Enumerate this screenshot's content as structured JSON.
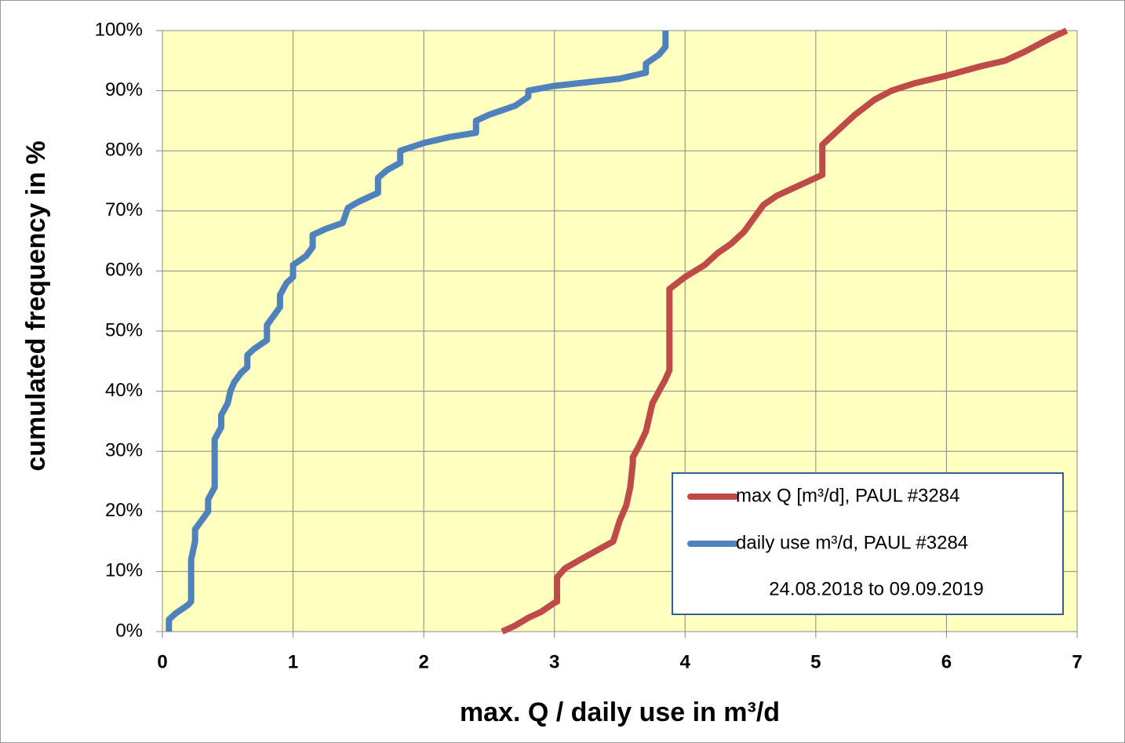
{
  "chart_data": {
    "type": "line",
    "x_label": "max. Q / daily use in m³/d",
    "y_label": "cumulated frequency in %",
    "annotation": "24.08.2018 to 09.09.2019",
    "xlim": [
      0,
      7
    ],
    "xticks": [
      0,
      1,
      2,
      3,
      4,
      5,
      6,
      7
    ],
    "ylim": [
      0,
      100
    ],
    "yticks": [
      {
        "value": 0,
        "label": "0%"
      },
      {
        "value": 10,
        "label": "10%"
      },
      {
        "value": 20,
        "label": "20%"
      },
      {
        "value": 30,
        "label": "30%"
      },
      {
        "value": 40,
        "label": "40%"
      },
      {
        "value": 50,
        "label": "50%"
      },
      {
        "value": 60,
        "label": "60%"
      },
      {
        "value": 70,
        "label": "70%"
      },
      {
        "value": 80,
        "label": "80%"
      },
      {
        "value": 90,
        "label": "90%"
      },
      {
        "value": 100,
        "label": "100%"
      }
    ],
    "grid": true,
    "legend": "lower right",
    "background": "#ffffc0",
    "series": [
      {
        "name": "max Q [m³/d],  PAUL #3284",
        "color": "#be4b48",
        "x": [
          2.6,
          2.7,
          2.8,
          2.9,
          3.0,
          3.02,
          3.02,
          3.08,
          3.2,
          3.35,
          3.45,
          3.5,
          3.55,
          3.58,
          3.6,
          3.6,
          3.65,
          3.7,
          3.75,
          3.8,
          3.85,
          3.88,
          3.88,
          4.0,
          4.15,
          4.25,
          4.35,
          4.45,
          4.5,
          4.6,
          4.7,
          4.85,
          5.05,
          5.05,
          5.15,
          5.3,
          5.45,
          5.58,
          5.75,
          6.0,
          6.25,
          6.45,
          6.6,
          6.8,
          6.92
        ],
        "values": [
          0,
          1,
          2.3,
          3.3,
          4.8,
          5,
          9,
          10.5,
          12,
          13.8,
          15,
          18.5,
          21,
          24,
          28,
          29,
          31,
          33.3,
          38,
          40,
          42,
          43.5,
          57,
          59,
          61,
          63,
          64.5,
          66.5,
          68,
          71,
          72.5,
          74,
          76,
          81,
          83,
          86,
          88.5,
          90,
          91.2,
          92.5,
          94,
          95,
          96.5,
          98.8,
          100
        ]
      },
      {
        "name": "daily use m³/d, PAUL #3284",
        "color": "#4f81bd",
        "x": [
          0.05,
          0.05,
          0.1,
          0.2,
          0.22,
          0.22,
          0.25,
          0.25,
          0.3,
          0.35,
          0.35,
          0.4,
          0.4,
          0.45,
          0.45,
          0.5,
          0.52,
          0.55,
          0.6,
          0.65,
          0.65,
          0.7,
          0.8,
          0.8,
          0.85,
          0.9,
          0.9,
          0.95,
          1.0,
          1.0,
          1.1,
          1.15,
          1.15,
          1.25,
          1.38,
          1.42,
          1.5,
          1.65,
          1.65,
          1.72,
          1.82,
          1.82,
          2.0,
          2.2,
          2.4,
          2.4,
          2.5,
          2.7,
          2.8,
          2.8,
          3.0,
          3.5,
          3.7,
          3.7,
          3.8,
          3.85,
          3.85
        ],
        "values": [
          0,
          2,
          3,
          4.5,
          5,
          12,
          15,
          17,
          18.5,
          20,
          22,
          24,
          32,
          34,
          36,
          38,
          40,
          41.5,
          43,
          44,
          46,
          47,
          48.5,
          51,
          52.5,
          54,
          56,
          58,
          59,
          61,
          62.5,
          64,
          66,
          67,
          68,
          70.5,
          71.5,
          73,
          75.5,
          76.8,
          78,
          80,
          81.3,
          82.3,
          83,
          85,
          86,
          87.5,
          89,
          90,
          90.8,
          92,
          93,
          94.5,
          96,
          97.3,
          100
        ]
      }
    ]
  }
}
